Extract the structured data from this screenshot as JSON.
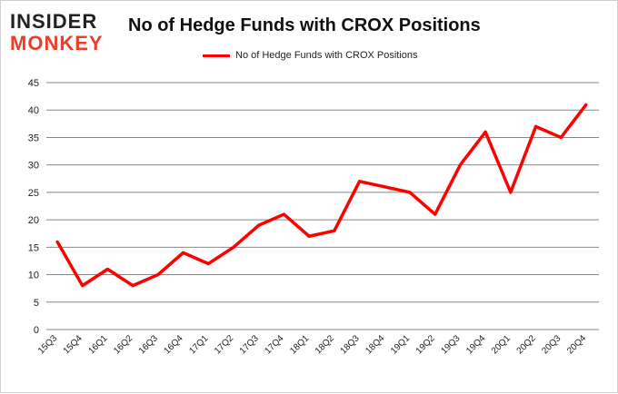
{
  "logo": {
    "line1": "INSIDER",
    "line2": "MONKEY"
  },
  "chart_data": {
    "type": "line",
    "title": "No of Hedge Funds with CROX Positions",
    "xlabel": "",
    "ylabel": "",
    "categories": [
      "15Q3",
      "15Q4",
      "16Q1",
      "16Q2",
      "16Q3",
      "16Q4",
      "17Q1",
      "17Q2",
      "17Q3",
      "17Q4",
      "18Q1",
      "18Q2",
      "18Q3",
      "18Q4",
      "19Q1",
      "19Q2",
      "19Q3",
      "19Q4",
      "20Q1",
      "20Q2",
      "20Q3",
      "20Q4"
    ],
    "series": [
      {
        "name": "No of Hedge Funds with CROX Positions",
        "color": "#ff0000",
        "values": [
          16,
          8,
          11,
          8,
          10,
          14,
          12,
          15,
          19,
          21,
          17,
          18,
          27,
          26,
          25,
          21,
          30,
          36,
          25,
          37,
          35,
          41
        ]
      }
    ],
    "ylim": [
      0,
      45
    ],
    "yticks": [
      0,
      5,
      10,
      15,
      20,
      25,
      30,
      35,
      40,
      45
    ],
    "grid": true,
    "legend": "top-center"
  }
}
